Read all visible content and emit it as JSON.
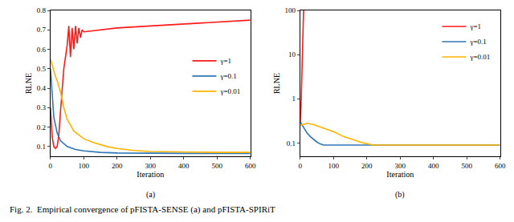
{
  "caption": "Fig. 2.  Empirical convergence of pFISTA-SENSE (a) and pFISTA-SPIRiT",
  "chart_data": [
    {
      "type": "line",
      "subtitle": "(a)",
      "x_label": "Iteration",
      "y_label": "RLNE",
      "xlim": [
        0,
        600
      ],
      "xticks": [
        0,
        100,
        200,
        300,
        400,
        500,
        600
      ],
      "ylim": [
        0.05,
        0.8
      ],
      "yticks": [
        0.1,
        0.2,
        0.3,
        0.4,
        0.5,
        0.6,
        0.7,
        0.8
      ],
      "grid": false,
      "legend": "right",
      "series": [
        {
          "name": "γ=1",
          "color": "#ff1a1a",
          "x": [
            0,
            5,
            10,
            15,
            20,
            25,
            30,
            40,
            50,
            55,
            60,
            65,
            70,
            75,
            80,
            85,
            90,
            95,
            100,
            150,
            200,
            300,
            400,
            500,
            600
          ],
          "values": [
            0.3,
            0.15,
            0.1,
            0.09,
            0.1,
            0.16,
            0.28,
            0.5,
            0.62,
            0.72,
            0.56,
            0.71,
            0.6,
            0.72,
            0.63,
            0.71,
            0.66,
            0.7,
            0.69,
            0.7,
            0.71,
            0.72,
            0.73,
            0.74,
            0.75
          ]
        },
        {
          "name": "γ=0.1",
          "color": "#2f76b5",
          "x": [
            0,
            5,
            10,
            20,
            30,
            50,
            75,
            100,
            150,
            200,
            300,
            400,
            500,
            600
          ],
          "values": [
            0.5,
            0.35,
            0.25,
            0.17,
            0.13,
            0.1,
            0.085,
            0.078,
            0.07,
            0.067,
            0.065,
            0.065,
            0.065,
            0.065
          ]
        },
        {
          "name": "γ=0.01",
          "color": "#ffb300",
          "x": [
            0,
            5,
            10,
            15,
            20,
            30,
            40,
            50,
            70,
            100,
            130,
            170,
            200,
            250,
            300,
            400,
            500,
            600
          ],
          "values": [
            0.55,
            0.52,
            0.48,
            0.46,
            0.44,
            0.38,
            0.3,
            0.24,
            0.18,
            0.14,
            0.12,
            0.1,
            0.09,
            0.08,
            0.075,
            0.072,
            0.07,
            0.07
          ]
        }
      ]
    },
    {
      "type": "line",
      "subtitle": "(b)",
      "x_label": "Iteration",
      "y_label": "RLNE",
      "log": "y",
      "xlim": [
        0,
        600
      ],
      "xticks": [
        0,
        100,
        200,
        300,
        400,
        500,
        600
      ],
      "ylim": [
        0.05,
        100
      ],
      "yticks": [
        0.1,
        1,
        10,
        100
      ],
      "grid": false,
      "legend": "upper right",
      "series": [
        {
          "name": "γ=1",
          "color": "#ff1a1a",
          "x": [
            0,
            3,
            6,
            10
          ],
          "values": [
            0.3,
            1,
            8,
            100
          ]
        },
        {
          "name": "γ=0.1",
          "color": "#2f76b5",
          "x": [
            0,
            10,
            20,
            30,
            40,
            50,
            60,
            70,
            100,
            200,
            300,
            400,
            500,
            600
          ],
          "values": [
            0.3,
            0.22,
            0.17,
            0.14,
            0.12,
            0.105,
            0.095,
            0.09,
            0.09,
            0.09,
            0.09,
            0.09,
            0.09,
            0.09
          ]
        },
        {
          "name": "γ=0.01",
          "color": "#ffb300",
          "x": [
            0,
            20,
            40,
            60,
            80,
            100,
            130,
            160,
            190,
            220,
            300,
            400,
            500,
            600
          ],
          "values": [
            0.25,
            0.28,
            0.26,
            0.23,
            0.2,
            0.18,
            0.14,
            0.12,
            0.1,
            0.09,
            0.09,
            0.09,
            0.09,
            0.09
          ]
        }
      ]
    }
  ]
}
